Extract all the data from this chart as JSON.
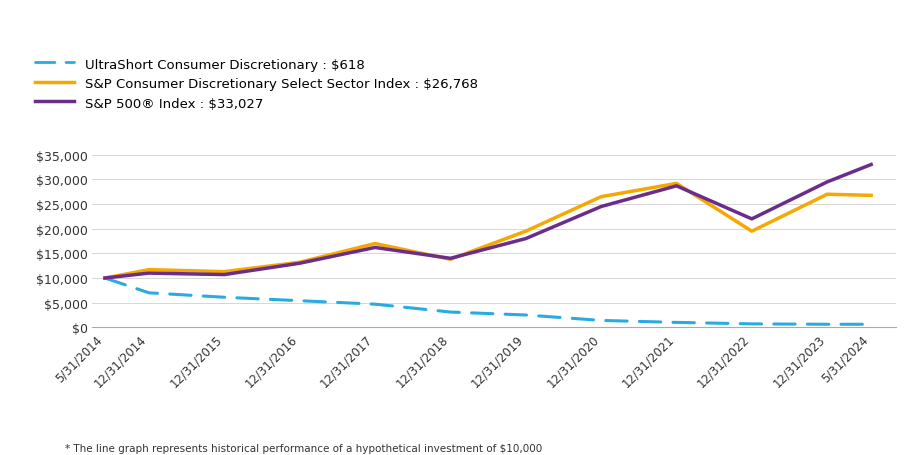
{
  "legend_entries": [
    "UltraShort Consumer Discretionary : $618",
    "S&P Consumer Discretionary Select Sector Index : $26,768",
    "S&P 500® Index : $33,027"
  ],
  "line_colors": [
    "#29ABE2",
    "#F5A800",
    "#6B2D8B"
  ],
  "footnote": "* The line graph represents historical performance of a hypothetical investment of $10,000",
  "x_labels": [
    "5/31/2014",
    "12/31/2014",
    "12/31/2015",
    "12/31/2016",
    "12/31/2017",
    "12/31/2018",
    "12/31/2019",
    "12/31/2020",
    "12/31/2021",
    "12/31/2022",
    "12/31/2023",
    "5/31/2024"
  ],
  "x_positions": [
    0,
    7,
    19,
    31,
    43,
    55,
    67,
    79,
    91,
    103,
    115,
    122
  ],
  "ultrashort_y": [
    10000,
    7000,
    6100,
    5400,
    4700,
    3100,
    2500,
    1400,
    1000,
    700,
    618,
    618
  ],
  "sp_consumer_y": [
    10000,
    11700,
    11300,
    13200,
    17000,
    13800,
    19500,
    26500,
    29200,
    19500,
    27000,
    26768
  ],
  "sp500_y": [
    10000,
    11000,
    10700,
    13000,
    16200,
    14000,
    18000,
    24500,
    28700,
    22000,
    29500,
    33027
  ],
  "ylim": [
    0,
    37000
  ],
  "yticks": [
    0,
    5000,
    10000,
    15000,
    20000,
    25000,
    30000,
    35000
  ],
  "background_color": "#ffffff",
  "grid_color": "#d0d0d0"
}
